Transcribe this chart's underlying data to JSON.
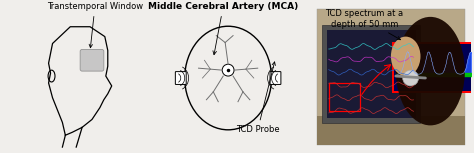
{
  "bg_color": "#f0eeeb",
  "label_transtemporal": "Transtemporal Window",
  "label_mca": "Middle Cerebral Artery (MCA)",
  "label_tcd_spectrum": "TCD spectrum at a\ndepth of 50 mm",
  "label_tcd_probe": "TCD Probe",
  "font_size_labels": 6.0,
  "font_size_bold": 6.5
}
